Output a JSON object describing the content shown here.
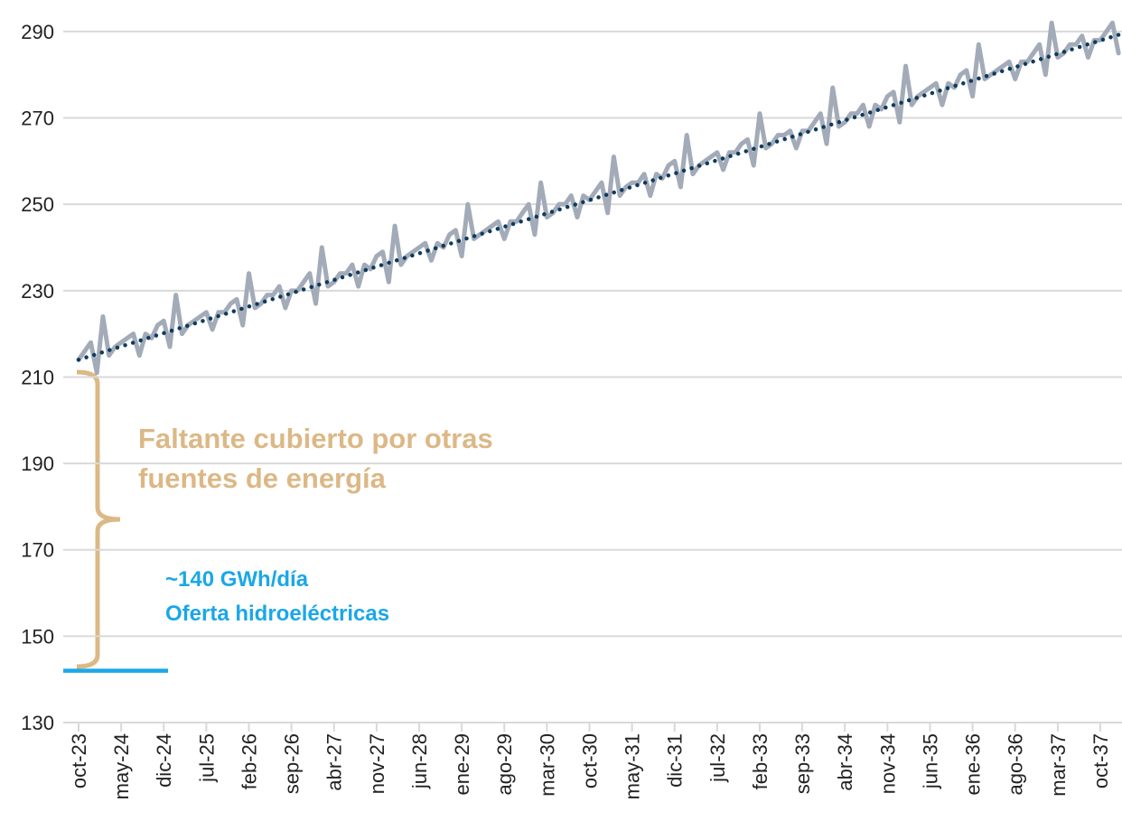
{
  "chart_data": {
    "type": "line",
    "categories": [
      "oct-23",
      null,
      null,
      null,
      null,
      null,
      null,
      "may-24",
      null,
      null,
      null,
      null,
      null,
      null,
      "dic-24",
      null,
      null,
      null,
      null,
      null,
      null,
      "jul-25",
      null,
      null,
      null,
      null,
      null,
      null,
      "feb-26",
      null,
      null,
      null,
      null,
      null,
      null,
      "sep-26",
      null,
      null,
      null,
      null,
      null,
      null,
      "abr-27",
      null,
      null,
      null,
      null,
      null,
      null,
      "nov-27",
      null,
      null,
      null,
      null,
      null,
      null,
      "jun-28",
      null,
      null,
      null,
      null,
      null,
      null,
      "ene-29",
      null,
      null,
      null,
      null,
      null,
      null,
      "ago-29",
      null,
      null,
      null,
      null,
      null,
      null,
      "mar-30",
      null,
      null,
      null,
      null,
      null,
      null,
      "oct-30",
      null,
      null,
      null,
      null,
      null,
      null,
      "may-31",
      null,
      null,
      null,
      null,
      null,
      null,
      "dic-31",
      null,
      null,
      null,
      null,
      null,
      null,
      "jul-32",
      null,
      null,
      null,
      null,
      null,
      null,
      "feb-33",
      null,
      null,
      null,
      null,
      null,
      null,
      "sep-33",
      null,
      null,
      null,
      null,
      null,
      null,
      "abr-34",
      null,
      null,
      null,
      null,
      null,
      null,
      "nov-34",
      null,
      null,
      null,
      null,
      null,
      null,
      "jun-35",
      null,
      null,
      null,
      null,
      null,
      null,
      "ene-36",
      null,
      null,
      null,
      null,
      null,
      null,
      "ago-36",
      null,
      null,
      null,
      null,
      null,
      null,
      "mar-37",
      null,
      null,
      null,
      null,
      null,
      null,
      "oct-37",
      null,
      null,
      null
    ],
    "series": [
      {
        "color": "#a3abb8",
        "style": "solid",
        "values": [
          214,
          216,
          218,
          211,
          224,
          215,
          217,
          218,
          219,
          220,
          215,
          220,
          219,
          222,
          223,
          217,
          229,
          220,
          222,
          223,
          224,
          225,
          221,
          225,
          225,
          227,
          228,
          222,
          234,
          226,
          227,
          229,
          229,
          231,
          226,
          230,
          230,
          232,
          234,
          227,
          240,
          231,
          232,
          234,
          234,
          236,
          231,
          236,
          235,
          238,
          239,
          232,
          245,
          236,
          238,
          239,
          240,
          241,
          237,
          241,
          240,
          243,
          244,
          238,
          250,
          242,
          243,
          244,
          245,
          246,
          242,
          246,
          246,
          248,
          250,
          243,
          255,
          247,
          248,
          250,
          250,
          252,
          247,
          252,
          251,
          253,
          255,
          248,
          261,
          252,
          254,
          255,
          255,
          257,
          252,
          257,
          256,
          259,
          260,
          254,
          266,
          257,
          259,
          260,
          261,
          262,
          258,
          262,
          262,
          264,
          265,
          259,
          271,
          263,
          264,
          266,
          266,
          267,
          263,
          267,
          267,
          269,
          271,
          264,
          277,
          268,
          269,
          271,
          271,
          273,
          268,
          273,
          272,
          275,
          276,
          269,
          282,
          273,
          275,
          276,
          277,
          278,
          273,
          278,
          277,
          280,
          281,
          275,
          287,
          279,
          280,
          281,
          282,
          283,
          279,
          283,
          283,
          285,
          287,
          280,
          292,
          284,
          285,
          287,
          287,
          289,
          284,
          288,
          288,
          290,
          292,
          285
        ]
      },
      {
        "color": "#0d3b5e",
        "style": "dotted",
        "values": [
          214,
          214.44,
          214.88,
          215.32,
          215.76,
          216.2,
          216.64,
          217.08,
          217.52,
          217.96,
          218.4,
          218.84,
          219.28,
          219.72,
          220.16,
          220.6,
          221.04,
          221.48,
          221.92,
          222.36,
          222.8,
          223.24,
          223.68,
          224.12,
          224.56,
          225,
          225.44,
          225.88,
          226.32,
          226.76,
          227.2,
          227.64,
          228.08,
          228.52,
          228.96,
          229.4,
          229.84,
          230.28,
          230.72,
          231.16,
          231.6,
          232.04,
          232.48,
          232.92,
          233.36,
          233.8,
          234.24,
          234.68,
          235.12,
          235.56,
          236,
          236.44,
          236.88,
          237.32,
          237.76,
          238.2,
          238.64,
          239.08,
          239.52,
          239.96,
          240.4,
          240.84,
          241.28,
          241.72,
          242.16,
          242.6,
          243.04,
          243.48,
          243.92,
          244.36,
          244.8,
          245.24,
          245.68,
          246.12,
          246.56,
          247,
          247.44,
          247.88,
          248.32,
          248.76,
          249.2,
          249.64,
          250.08,
          250.52,
          250.96,
          251.4,
          251.84,
          252.28,
          252.72,
          253.16,
          253.6,
          254.04,
          254.48,
          254.92,
          255.36,
          255.8,
          256.24,
          256.68,
          257.12,
          257.56,
          258,
          258.44,
          258.88,
          259.32,
          259.76,
          260.2,
          260.64,
          261.08,
          261.52,
          261.96,
          262.4,
          262.84,
          263.28,
          263.72,
          264.16,
          264.6,
          265.04,
          265.48,
          265.92,
          266.36,
          266.8,
          267.24,
          267.68,
          268.12,
          268.56,
          269,
          269.44,
          269.88,
          270.32,
          270.76,
          271.2,
          271.64,
          272.08,
          272.52,
          272.96,
          273.4,
          273.84,
          274.28,
          274.72,
          275.16,
          275.6,
          276.04,
          276.48,
          276.92,
          277.36,
          277.8,
          278.24,
          278.68,
          279.12,
          279.56,
          280,
          280.44,
          280.88,
          281.32,
          281.76,
          282.2,
          282.64,
          283.08,
          283.52,
          283.96,
          284.4,
          284.84,
          285.28,
          285.72,
          286.16,
          286.6,
          287.04,
          287.48,
          287.92,
          288.36,
          288.8,
          289.24
        ]
      }
    ],
    "ylim": [
      130,
      297.3
    ],
    "yticks": [
      130,
      150,
      170,
      190,
      210,
      230,
      250,
      270,
      290
    ],
    "grid": true,
    "gap_annotation": {
      "lines": [
        "Faltante cubierto por otras",
        "fuentes de energía"
      ],
      "color": "#dcb886"
    },
    "hydro_annotation": {
      "lines": [
        "~140 GWh/día",
        "Oferta hidroeléctricas"
      ],
      "color": "#1aa7e8",
      "value": 142
    }
  }
}
